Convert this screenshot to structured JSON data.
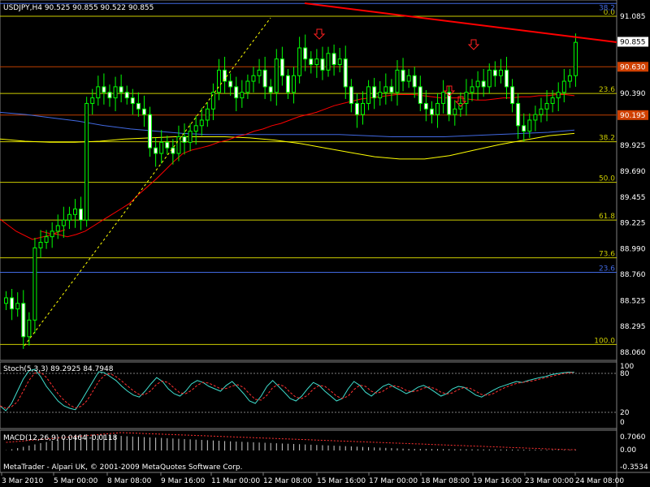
{
  "header": {
    "symbol_label": "USDJPY,H4  90.525 90.855 90.522 90.855"
  },
  "footer": {
    "copyright": "MetaTrader - Alpari UK, © 2001-2009 MetaQuotes Software Corp."
  },
  "stoch": {
    "label": "Stoch(5,3,3) 89.2925 84.7948",
    "levels": [
      "100",
      "80",
      "20",
      "0"
    ]
  },
  "macd": {
    "label": "MACD(12,26,9) 0.0464 -0.0118",
    "levels": [
      "0.7060",
      "0.00",
      "-0.3534"
    ]
  },
  "price_axis": {
    "ticks": [
      "91.085",
      "90.855",
      "90.630",
      "90.390",
      "90.195",
      "89.925",
      "89.690",
      "89.455",
      "89.225",
      "88.990",
      "88.760",
      "88.525",
      "88.295",
      "88.060"
    ],
    "highlight": [
      "90.855",
      "90.630",
      "90.195"
    ]
  },
  "time_axis": [
    "3 Mar 2010",
    "5 Mar 00:00",
    "8 Mar 08:00",
    "9 Mar 16:00",
    "11 Mar 00:00",
    "12 Mar 08:00",
    "15 Mar 16:00",
    "17 Mar 00:00",
    "18 Mar 08:00",
    "19 Mar 16:00",
    "23 Mar 00:00",
    "24 Mar 08:00"
  ],
  "colors": {
    "bull": "#00ff00",
    "ma_red": "#ff0000",
    "ma_yellow": "#ffff00",
    "ma_blue": "#4169e1",
    "stoch_main": "#40e0d0",
    "stoch_signal": "#ff3030",
    "fib": "#cccc00",
    "macd_hist": "#cccccc",
    "macd_signal": "#ff3030"
  },
  "chart_data": {
    "type": "candlestick",
    "symbol": "USDJPY",
    "timeframe": "H4",
    "ylim": [
      88.06,
      91.2
    ],
    "fibonacci": [
      {
        "level": "0.0",
        "price": 91.085
      },
      {
        "level": "23.6",
        "price": 90.39
      },
      {
        "level": "38.2",
        "price": 89.955
      },
      {
        "level": "50.0",
        "price": 89.59
      },
      {
        "level": "61.8",
        "price": 89.25
      },
      {
        "level": "73.6",
        "price": 88.91
      },
      {
        "level": "100.0",
        "price": 88.13
      }
    ],
    "extra_levels": [
      {
        "level": "38.2",
        "price": 91.2
      },
      {
        "level": "23.6",
        "price": 88.78
      }
    ],
    "close": [
      88.55,
      88.45,
      88.5,
      88.2,
      88.35,
      89.0,
      89.05,
      89.1,
      89.15,
      89.2,
      89.25,
      89.3,
      89.35,
      89.25,
      90.3,
      90.35,
      90.45,
      90.4,
      90.35,
      90.45,
      90.4,
      90.35,
      90.3,
      90.25,
      90.2,
      89.9,
      89.85,
      89.95,
      89.9,
      89.85,
      90.0,
      89.95,
      90.05,
      90.1,
      90.15,
      90.25,
      90.4,
      90.6,
      90.5,
      90.45,
      90.35,
      90.4,
      90.5,
      90.55,
      90.6,
      90.45,
      90.4,
      90.7,
      90.55,
      90.4,
      90.55,
      90.8,
      90.7,
      90.65,
      90.7,
      90.6,
      90.75,
      90.65,
      90.7,
      90.45,
      90.3,
      90.2,
      90.3,
      90.45,
      90.35,
      90.4,
      90.45,
      90.4,
      90.6,
      90.5,
      90.55,
      90.45,
      90.3,
      90.25,
      90.2,
      90.3,
      90.4,
      90.2,
      90.25,
      90.3,
      90.4,
      90.45,
      90.5,
      90.45,
      90.6,
      90.55,
      90.6,
      90.45,
      90.3,
      90.1,
      90.05,
      90.15,
      90.2,
      90.25,
      90.3,
      90.35,
      90.4,
      90.5,
      90.55,
      90.85
    ],
    "ma_red": [
      89.15,
      89.13,
      89.12,
      89.1,
      89.12,
      89.15,
      89.2,
      89.25,
      89.3,
      89.35,
      89.4,
      89.48,
      89.55,
      89.62,
      89.7,
      89.78,
      89.85,
      89.88,
      89.9,
      89.92,
      89.95,
      89.97,
      90.0,
      90.02,
      90.05,
      90.07,
      90.1,
      90.12,
      90.15,
      90.18,
      90.2,
      90.22,
      90.25,
      90.28,
      90.3,
      90.32,
      90.34,
      90.35,
      90.36,
      90.37,
      90.38,
      90.38,
      90.38,
      90.37,
      90.36,
      90.35,
      90.35,
      90.35,
      90.34,
      90.33,
      90.33,
      90.34,
      90.35,
      90.35,
      90.36,
      90.36,
      90.37,
      90.37,
      90.38,
      90.38,
      90.37
    ],
    "ma_yellow": [
      89.98,
      89.96,
      89.95,
      89.95,
      89.96,
      89.98,
      89.99,
      90.0,
      90.0,
      90.0,
      89.99,
      89.97,
      89.94,
      89.9,
      89.86,
      89.82,
      89.8,
      89.8,
      89.83,
      89.88,
      89.93,
      89.97,
      90.01,
      90.03
    ],
    "ma_blue": [
      90.22,
      90.2,
      90.17,
      90.14,
      90.1,
      90.07,
      90.05,
      90.03,
      90.02,
      90.02,
      90.02,
      90.02,
      90.02,
      90.02,
      90.01,
      90.0,
      90.0,
      90.0,
      90.01,
      90.02,
      90.03,
      90.04,
      90.06
    ]
  }
}
